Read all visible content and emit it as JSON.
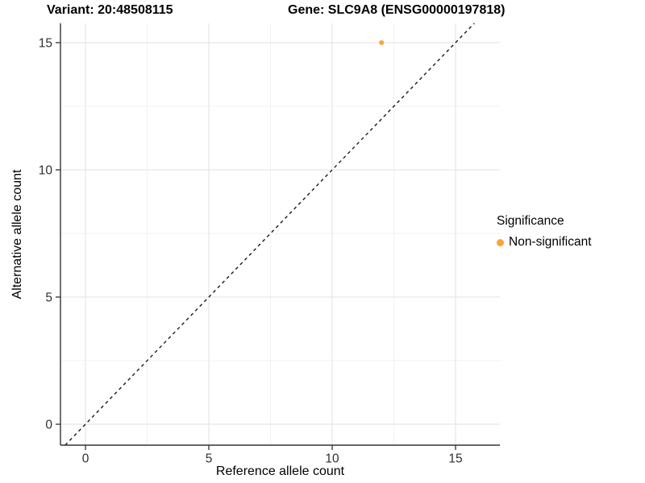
{
  "titles": {
    "variant": "Variant: 20:48508115",
    "gene": "Gene: SLC9A8 (ENSG00000197818)"
  },
  "chart_data": {
    "type": "scatter",
    "title_left": "Variant: 20:48508115",
    "title_right": "Gene: SLC9A8 (ENSG00000197818)",
    "xlabel": "Reference allele count",
    "ylabel": "Alternative allele count",
    "xlim": [
      0,
      15
    ],
    "ylim": [
      0,
      15
    ],
    "x_ticks": [
      0,
      5,
      10,
      15
    ],
    "y_ticks": [
      0,
      5,
      10,
      15
    ],
    "x_minor_ticks": [
      2.5,
      7.5,
      12.5
    ],
    "y_minor_ticks": [
      2.5,
      7.5,
      12.5
    ],
    "grid": "major+minor",
    "points": [
      {
        "x": 12,
        "y": 15,
        "series": "Non-significant"
      }
    ],
    "reference_line": {
      "type": "identity",
      "slope": 1,
      "intercept": 0,
      "style": "dashed",
      "color": "#1a1a1a"
    },
    "legend": {
      "title": "Significance",
      "position": "right",
      "entries": [
        {
          "label": "Non-significant",
          "color": "#FAA43A",
          "marker": "circle"
        }
      ]
    }
  },
  "colors": {
    "point": "#FAA43A",
    "grid_major": "#e6e6e6",
    "grid_minor": "#f2f2f2",
    "axis_line": "#333333",
    "tick_label": "#303030",
    "title": "#000000"
  }
}
